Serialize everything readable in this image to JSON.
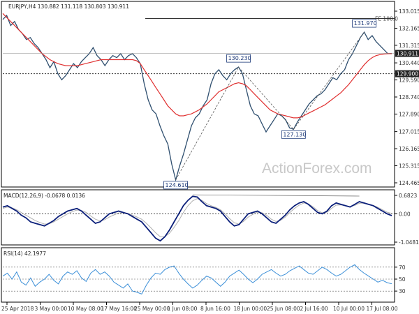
{
  "header": {
    "symbol_line": "EURJPY,H4  130.882 131.118 130.803 130.911"
  },
  "watermark": "ActionForex.com",
  "chart_data": {
    "type": "line",
    "main_panel": {
      "yticks": [
        133.015,
        132.165,
        131.315,
        130.44,
        129.59,
        128.74,
        127.89,
        127.015,
        126.165,
        125.315,
        124.465
      ],
      "ylim": [
        124.465,
        133.015
      ],
      "current_price": "130.911",
      "level_line": {
        "value": 129.9,
        "label": "129.900",
        "style": "dotted"
      },
      "fe_line": {
        "label": "FE 100.0",
        "value": 132.65
      },
      "callouts": [
        {
          "label": "124.610",
          "value": 124.61,
          "at": "25 May 00:00"
        },
        {
          "label": "130.230",
          "value": 130.23,
          "at": "6 Jun"
        },
        {
          "label": "127.130",
          "value": 127.13,
          "at": "25 Jun"
        },
        {
          "label": "131.970",
          "value": 131.97,
          "at": "12 Jul"
        }
      ],
      "series": [
        {
          "name": "EURJPY H4",
          "color": "#2f4f6f",
          "values": [
            132.6,
            132.8,
            132.3,
            132.5,
            132.1,
            131.9,
            131.6,
            131.7,
            131.4,
            131.2,
            130.9,
            130.6,
            130.2,
            130.5,
            129.9,
            129.6,
            129.8,
            130.1,
            130.4,
            130.2,
            130.5,
            130.7,
            130.9,
            131.2,
            130.8,
            130.6,
            130.3,
            130.6,
            130.8,
            130.7,
            130.9,
            130.6,
            130.8,
            130.9,
            130.7,
            130.4,
            129.4,
            128.6,
            128.1,
            127.9,
            127.3,
            126.8,
            126.4,
            125.4,
            124.61,
            125.3,
            125.9,
            126.6,
            127.3,
            127.7,
            127.9,
            128.3,
            128.6,
            129.4,
            129.9,
            130.1,
            129.8,
            129.6,
            129.9,
            130.1,
            130.23,
            129.9,
            129.1,
            128.3,
            127.9,
            127.8,
            127.4,
            127.0,
            127.3,
            127.6,
            127.9,
            127.8,
            127.6,
            127.2,
            127.13,
            127.5,
            127.8,
            128.1,
            128.4,
            128.6,
            128.8,
            128.9,
            129.1,
            129.4,
            129.7,
            129.6,
            129.9,
            130.1,
            130.6,
            130.9,
            131.3,
            131.7,
            131.97,
            131.6,
            131.8,
            131.5,
            131.3,
            131.1,
            130.9,
            130.911
          ]
        },
        {
          "name": "MA",
          "color": "#e03030",
          "values": [
            132.9,
            132.7,
            132.5,
            132.3,
            132.1,
            131.9,
            131.7,
            131.5,
            131.3,
            131.1,
            130.9,
            130.75,
            130.6,
            130.5,
            130.4,
            130.35,
            130.3,
            130.3,
            130.3,
            130.3,
            130.35,
            130.4,
            130.45,
            130.5,
            130.55,
            130.6,
            130.6,
            130.6,
            130.6,
            130.6,
            130.6,
            130.6,
            130.6,
            130.6,
            130.55,
            130.4,
            130.1,
            129.8,
            129.5,
            129.2,
            128.9,
            128.6,
            128.3,
            128.1,
            127.9,
            127.8,
            127.8,
            127.85,
            127.9,
            128.0,
            128.1,
            128.25,
            128.4,
            128.6,
            128.8,
            129.0,
            129.1,
            129.2,
            129.3,
            129.4,
            129.45,
            129.4,
            129.3,
            129.1,
            128.9,
            128.7,
            128.5,
            128.3,
            128.1,
            128.0,
            127.9,
            127.85,
            127.8,
            127.75,
            127.7,
            127.7,
            127.75,
            127.85,
            127.95,
            128.05,
            128.15,
            128.25,
            128.35,
            128.5,
            128.65,
            128.8,
            128.95,
            129.15,
            129.35,
            129.6,
            129.85,
            130.1,
            130.35,
            130.55,
            130.7,
            130.8,
            130.85,
            130.88,
            130.9,
            130.9
          ]
        }
      ]
    },
    "macd_panel": {
      "title": "MACD(12,26,9) -0.0678 0.0136",
      "yticks": [
        "0.6823",
        "0.00",
        "-1.0481"
      ],
      "ylim": [
        -1.0481,
        0.6823
      ],
      "series": [
        {
          "name": "MACD",
          "color": "#0b1f7a",
          "values": [
            0.25,
            0.3,
            0.2,
            0.1,
            -0.05,
            -0.15,
            -0.3,
            -0.35,
            -0.4,
            -0.45,
            -0.35,
            -0.25,
            -0.1,
            0.0,
            0.1,
            0.15,
            0.2,
            0.1,
            -0.05,
            -0.2,
            -0.35,
            -0.3,
            -0.15,
            0.0,
            0.05,
            0.1,
            0.05,
            0.0,
            -0.1,
            -0.2,
            -0.3,
            -0.5,
            -0.7,
            -0.9,
            -1.0,
            -0.85,
            -0.6,
            -0.3,
            0.0,
            0.3,
            0.5,
            0.65,
            0.62,
            0.45,
            0.3,
            0.25,
            0.2,
            0.1,
            -0.1,
            -0.3,
            -0.45,
            -0.4,
            -0.2,
            0.0,
            0.05,
            0.1,
            0.0,
            -0.15,
            -0.3,
            -0.35,
            -0.2,
            -0.05,
            0.15,
            0.3,
            0.4,
            0.45,
            0.35,
            0.2,
            0.05,
            0.0,
            0.1,
            0.3,
            0.4,
            0.35,
            0.3,
            0.25,
            0.35,
            0.45,
            0.4,
            0.35,
            0.3,
            0.2,
            0.1,
            0.0,
            -0.0678
          ]
        },
        {
          "name": "Signal",
          "color": "#b0b0b0",
          "values": [
            0.2,
            0.25,
            0.22,
            0.15,
            0.05,
            -0.05,
            -0.15,
            -0.25,
            -0.32,
            -0.38,
            -0.37,
            -0.3,
            -0.2,
            -0.1,
            0.0,
            0.08,
            0.14,
            0.12,
            0.05,
            -0.08,
            -0.2,
            -0.26,
            -0.22,
            -0.12,
            -0.04,
            0.03,
            0.04,
            0.02,
            -0.05,
            -0.12,
            -0.2,
            -0.35,
            -0.52,
            -0.7,
            -0.85,
            -0.85,
            -0.72,
            -0.5,
            -0.25,
            0.05,
            0.3,
            0.48,
            0.56,
            0.5,
            0.38,
            0.3,
            0.24,
            0.15,
            0.0,
            -0.18,
            -0.33,
            -0.38,
            -0.28,
            -0.12,
            -0.02,
            0.06,
            0.04,
            -0.06,
            -0.2,
            -0.28,
            -0.24,
            -0.12,
            0.05,
            0.2,
            0.32,
            0.4,
            0.37,
            0.26,
            0.12,
            0.04,
            0.06,
            0.2,
            0.32,
            0.33,
            0.3,
            0.27,
            0.31,
            0.39,
            0.39,
            0.36,
            0.31,
            0.24,
            0.15,
            0.06,
            0.0136
          ]
        }
      ],
      "divergence_line": "gray"
    },
    "rsi_panel": {
      "title": "RSI(14) 42.1977",
      "yticks": [
        "70",
        "50",
        "30"
      ],
      "ylim": [
        15,
        85
      ],
      "series": [
        {
          "name": "RSI",
          "color": "#3b8fd8",
          "values": [
            55,
            60,
            50,
            62,
            45,
            40,
            52,
            38,
            45,
            50,
            58,
            48,
            42,
            55,
            62,
            58,
            64,
            52,
            46,
            60,
            66,
            58,
            62,
            55,
            45,
            40,
            35,
            42,
            30,
            28,
            25,
            40,
            52,
            60,
            58,
            66,
            70,
            72,
            60,
            50,
            42,
            35,
            40,
            48,
            55,
            52,
            45,
            38,
            45,
            55,
            60,
            65,
            58,
            50,
            44,
            50,
            58,
            62,
            66,
            60,
            55,
            58,
            64,
            68,
            72,
            66,
            60,
            58,
            64,
            70,
            66,
            60,
            55,
            58,
            64,
            70,
            74,
            66,
            60,
            55,
            50,
            45,
            48,
            44,
            42.2
          ]
        }
      ]
    },
    "x_tick_labels": [
      "25 Apr 2018",
      "3 May 00:00",
      "10 May 08:00",
      "17 May 16:00",
      "25 May 00:00",
      "1 Jun 08:00",
      "8 Jun 16:00",
      "18 Jun 00:00",
      "25 Jun 08:00",
      "2 Jul 16:00",
      "10 Jul 00:00",
      "17 Jul 08:00"
    ]
  }
}
